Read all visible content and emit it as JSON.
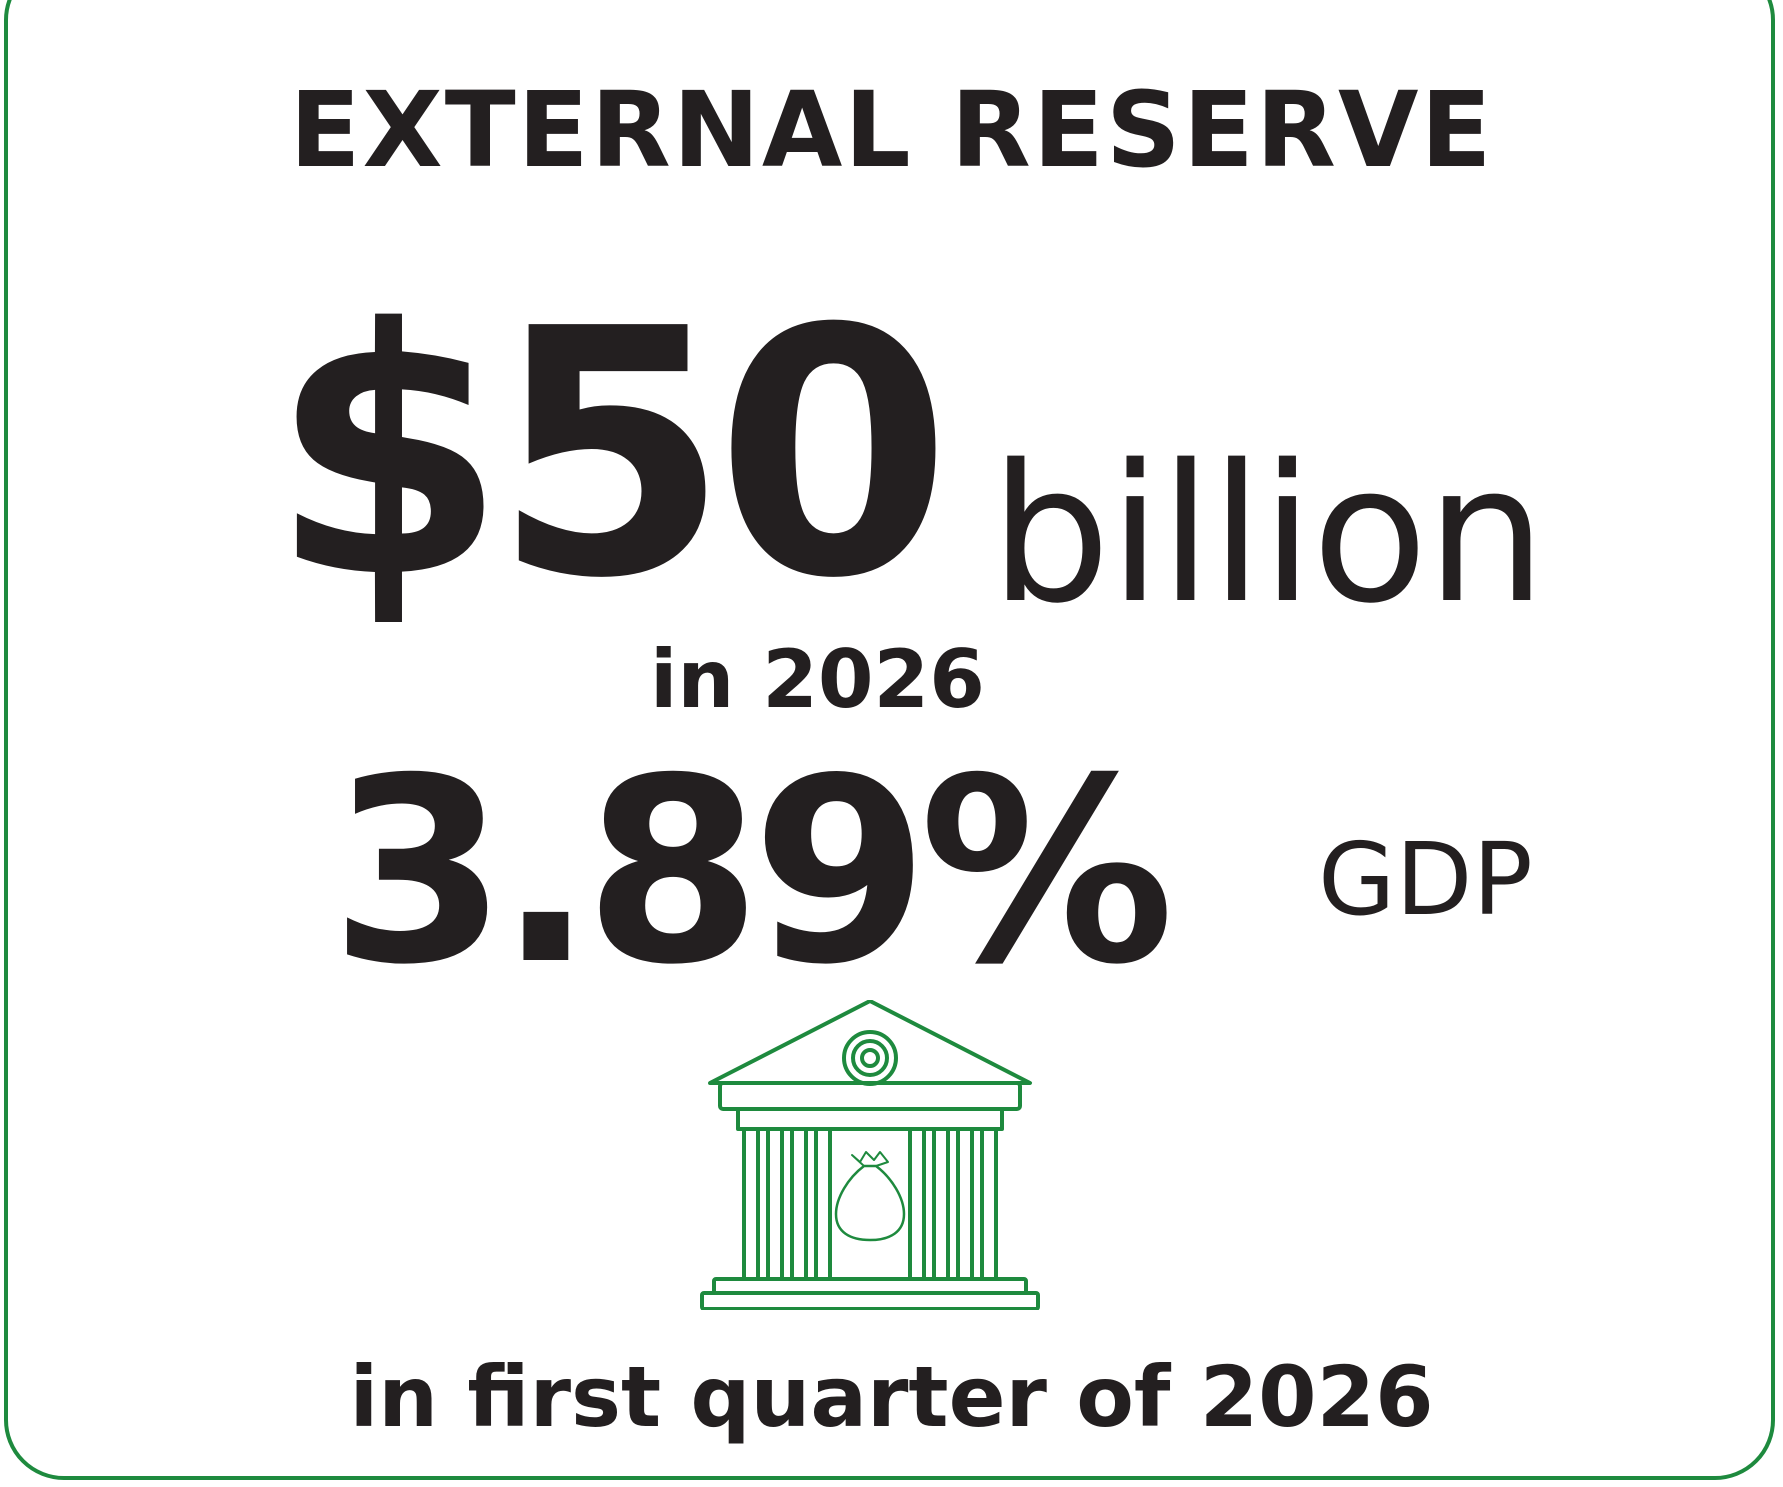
{
  "title": "EXTERNAL RESERVE",
  "reserve": {
    "amount": "$50",
    "unit": "billion",
    "year_note": "in 2026"
  },
  "gdp": {
    "percent": "3.89%",
    "label": "GDP"
  },
  "footer": "in first quarter of 2026",
  "icon": "bank-building-icon",
  "colors": {
    "accent": "#1e8a3e",
    "text": "#231f20",
    "background": "#ffffff"
  }
}
